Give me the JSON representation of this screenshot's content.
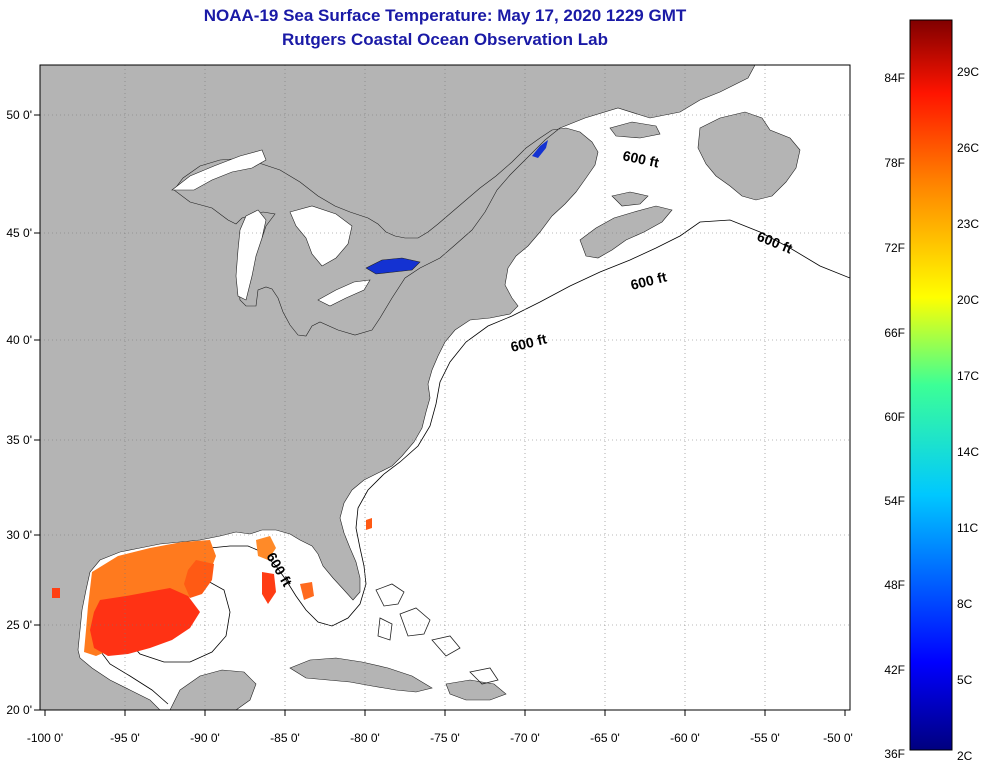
{
  "title": {
    "line1": "NOAA-19 Sea Surface Temperature:  May 17, 2020 1229 GMT",
    "line2": "Rutgers Coastal Ocean Observation Lab"
  },
  "axes": {
    "lon_labels": [
      "-100 0'",
      "-95 0'",
      "-90 0'",
      "-85 0'",
      "-80 0'",
      "-75 0'",
      "-70 0'",
      "-65 0'",
      "-60 0'",
      "-55 0'",
      "-50 0'"
    ],
    "lat_labels": [
      "50 0'",
      "45 0'",
      "40 0'",
      "35 0'",
      "30 0'",
      "25 0'",
      "20 0'"
    ]
  },
  "depth_contour_label": "600 ft",
  "colorbar": {
    "fahrenheit": [
      "84F",
      "78F",
      "72F",
      "66F",
      "60F",
      "54F",
      "48F",
      "42F",
      "36F"
    ],
    "celsius": [
      "29C",
      "26C",
      "23C",
      "20C",
      "17C",
      "14C",
      "11C",
      "8C",
      "5C",
      "2C"
    ]
  },
  "colors": {
    "land": "#b4b4b4",
    "ocean": "#ffffff",
    "title": "#1a1aa6",
    "warm": "#ff5a14",
    "cold_lake": "#1432d2"
  }
}
